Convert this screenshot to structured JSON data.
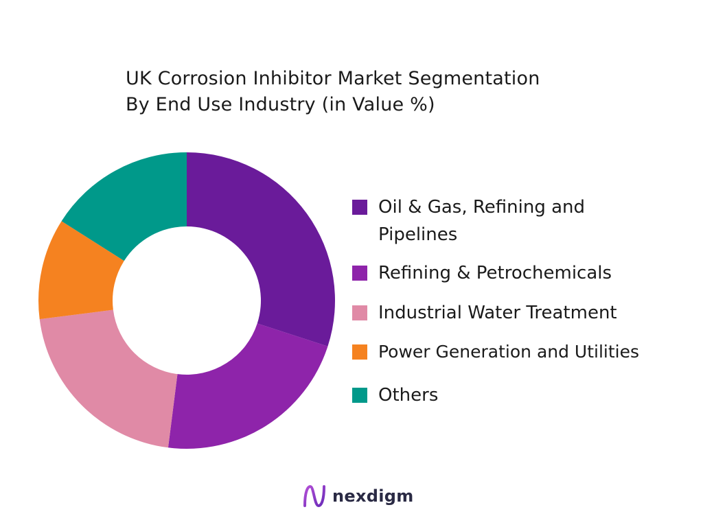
{
  "chart_data": {
    "type": "pie",
    "donut": true,
    "title_lines": [
      "UK Corrosion Inhibitor Market Segmentation",
      "By End Use Industry (in Value %)"
    ],
    "categories": [
      "Oil & Gas, Refining and Pipelines",
      "Refining & Petrochemicals",
      "Industrial Water Treatment",
      "Power Generation and Utilities",
      "Others"
    ],
    "values": [
      30,
      22,
      21,
      11,
      16
    ],
    "colors": [
      "#6a1b9a",
      "#8e24aa",
      "#e08aa6",
      "#f58220",
      "#00998a"
    ],
    "legend_position": "right"
  },
  "logo": {
    "text": "nexdigm"
  }
}
